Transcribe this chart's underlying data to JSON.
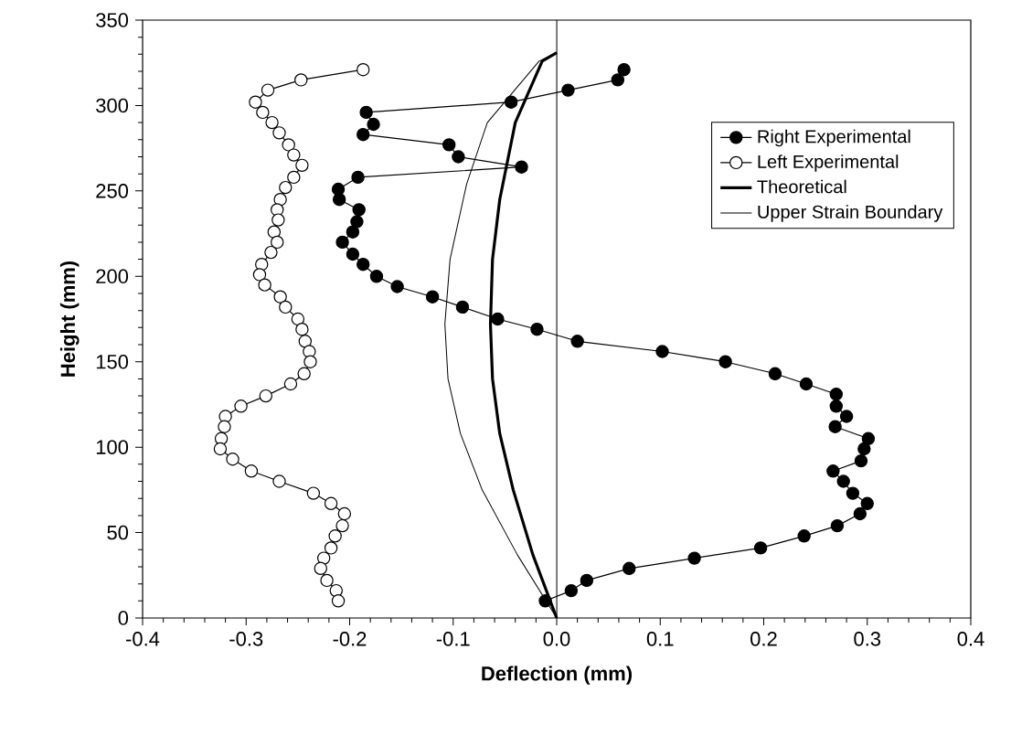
{
  "chart_data": {
    "type": "line",
    "xlabel": "Deflection (mm)",
    "ylabel": "Height (mm)",
    "xlim": [
      -0.4,
      0.4
    ],
    "ylim": [
      0,
      350
    ],
    "xticks": [
      -0.4,
      -0.3,
      -0.2,
      -0.1,
      {
        "value": 0,
        "label": "0.0"
      },
      0.1,
      0.2,
      0.3,
      0.4
    ],
    "yticks": [
      0,
      50,
      100,
      150,
      200,
      250,
      300,
      350
    ],
    "legend": "top right",
    "ref_lines": [
      {
        "axis": "x",
        "value": 0,
        "color": "#000000"
      }
    ],
    "series": [
      {
        "name": "Right Experimental",
        "color": "#000000",
        "marker": "circle",
        "x": [
          -0.011,
          0.014,
          0.029,
          0.07,
          0.133,
          0.197,
          0.239,
          0.271,
          0.293,
          0.3,
          0.286,
          0.277,
          0.267,
          0.294,
          0.297,
          0.301,
          0.269,
          0.28,
          0.27,
          0.27,
          0.241,
          0.211,
          0.163,
          0.102,
          0.02,
          -0.019,
          -0.057,
          -0.091,
          -0.12,
          -0.154,
          -0.174,
          -0.187,
          -0.197,
          -0.207,
          -0.197,
          -0.193,
          -0.191,
          -0.21,
          -0.211,
          -0.192,
          -0.034,
          -0.095,
          -0.104,
          -0.187,
          -0.177,
          -0.184,
          -0.044,
          0.011,
          0.059,
          0.065
        ],
        "values": [
          10,
          16,
          22,
          29,
          35,
          41,
          48,
          54,
          61,
          67,
          73,
          80,
          86,
          92,
          99,
          105,
          112,
          118,
          124,
          131,
          137,
          143,
          150,
          156,
          162,
          169,
          175,
          182,
          188,
          194,
          200,
          207,
          213,
          220,
          226,
          232,
          239,
          245,
          251,
          258,
          264,
          270,
          277,
          283,
          289,
          296,
          302,
          309,
          315,
          321
        ]
      },
      {
        "name": "Left Experimental",
        "color": "#000000",
        "marker": "circle",
        "x": [
          -0.187,
          -0.247,
          -0.279,
          -0.291,
          -0.284,
          -0.275,
          -0.268,
          -0.259,
          -0.254,
          -0.246,
          -0.254,
          -0.262,
          -0.267,
          -0.27,
          -0.269,
          -0.273,
          -0.27,
          -0.276,
          -0.285,
          -0.287,
          -0.282,
          -0.267,
          -0.262,
          -0.25,
          -0.246,
          -0.243,
          -0.239,
          -0.238,
          -0.244,
          -0.257,
          -0.281,
          -0.305,
          -0.32,
          -0.321,
          -0.324,
          -0.325,
          -0.313,
          -0.295,
          -0.268,
          -0.235,
          -0.218,
          -0.205,
          -0.207,
          -0.214,
          -0.218,
          -0.225,
          -0.228,
          -0.222,
          -0.213,
          -0.211
        ],
        "values": [
          321,
          315,
          309,
          302,
          296,
          290,
          284,
          277,
          271,
          265,
          258,
          252,
          245,
          239,
          233,
          226,
          220,
          214,
          207,
          201,
          195,
          188,
          182,
          175,
          169,
          162,
          156,
          150,
          143,
          137,
          130,
          124,
          118,
          112,
          105,
          99,
          93,
          86,
          80,
          73,
          67,
          61,
          54,
          48,
          41,
          35,
          29,
          22,
          16,
          10
        ]
      },
      {
        "name": "Theoretical",
        "color": "#000000",
        "x": [
          0,
          -0.023,
          -0.042,
          -0.055,
          -0.062,
          -0.064,
          -0.062,
          -0.055,
          -0.04,
          -0.014,
          0
        ],
        "values": [
          0,
          37,
          75,
          108,
          140,
          172,
          210,
          245,
          290,
          326,
          331
        ]
      },
      {
        "name": "Upper Strain Boundary",
        "color": "#000000",
        "x": [
          0,
          -0.038,
          -0.072,
          -0.093,
          -0.105,
          -0.108,
          -0.103,
          -0.087,
          -0.067,
          -0.017,
          0
        ],
        "values": [
          0,
          37,
          75,
          108,
          140,
          172,
          210,
          254,
          290,
          326,
          331
        ]
      }
    ]
  }
}
